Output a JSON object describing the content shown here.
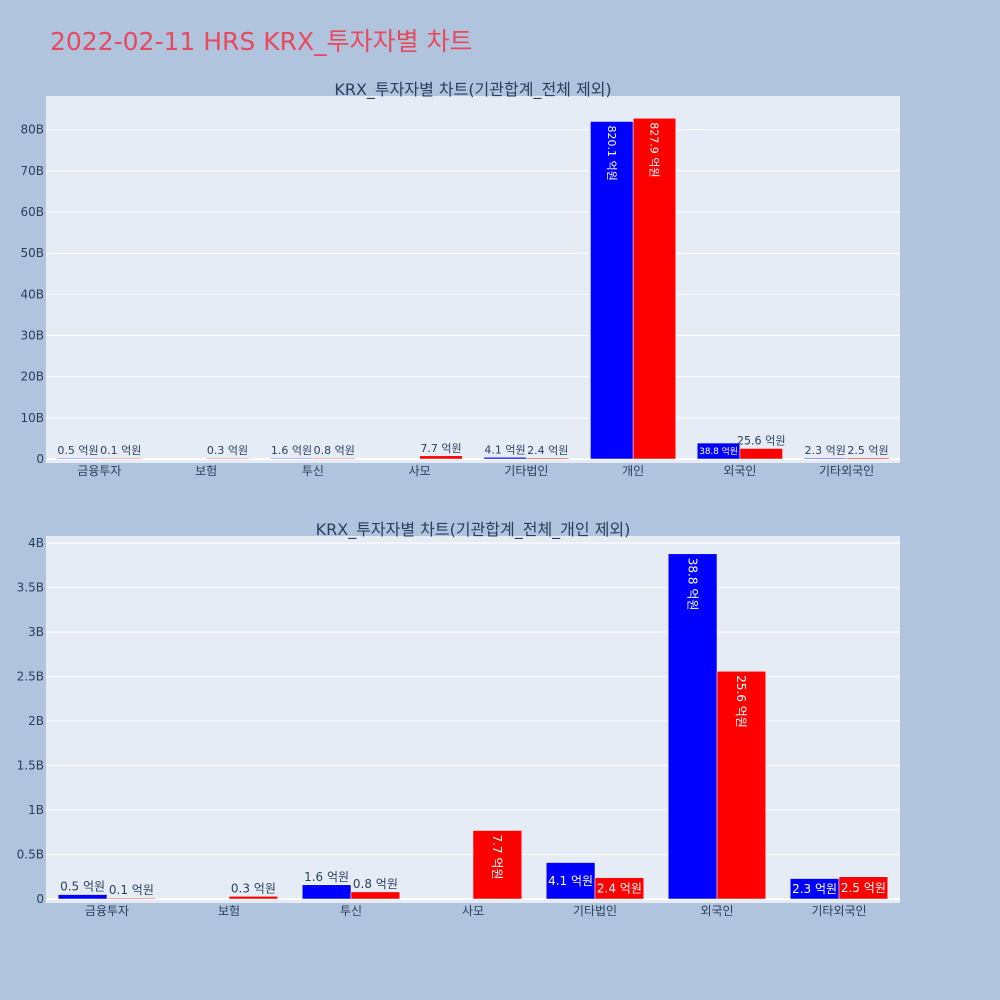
{
  "page": {
    "title": "2022-02-11 HRS KRX_투자자별 차트"
  },
  "colors": {
    "buy": "#0000ff",
    "sell": "#ff0000",
    "plot_bg": "#e5ecf6",
    "page_bg": "#b0c4de",
    "title": "#e8495f",
    "text": "#2a3f5f"
  },
  "chart_data": [
    {
      "type": "bar",
      "title": "KRX_투자자별 차트(기관합계_전체 제외)",
      "categories": [
        "금융투자",
        "보험",
        "투신",
        "사모",
        "기타법인",
        "개인",
        "외국인",
        "기타외국인"
      ],
      "series": [
        {
          "color": "#0000ff",
          "values": [
            0.05,
            null,
            0.16,
            null,
            0.41,
            82.01,
            3.88,
            0.23
          ],
          "labels": [
            "0.5 억원",
            "",
            "1.6 억원",
            "",
            "4.1 억원",
            "820.1 억원",
            "38.8 억원",
            "2.3 억원"
          ]
        },
        {
          "color": "#ff0000",
          "values": [
            0.01,
            0.03,
            0.08,
            0.77,
            0.24,
            82.79,
            2.56,
            0.25
          ],
          "labels": [
            "0.1 억원",
            "0.3 억원",
            "0.8 억원",
            "7.7 억원",
            "2.4 억원",
            "827.9 억원",
            "25.6 억원",
            "2.5 억원"
          ]
        }
      ],
      "yticks": [
        0,
        10,
        20,
        30,
        40,
        50,
        60,
        70,
        80
      ],
      "ytick_labels": [
        "0",
        "10B",
        "20B",
        "30B",
        "40B",
        "50B",
        "60B",
        "70B",
        "80B"
      ],
      "ylim": [
        0,
        88.2
      ],
      "grid": true,
      "legend": "none"
    },
    {
      "type": "bar",
      "title": "KRX_투자자별 차트(기관합계_전체_개인 제외)",
      "categories": [
        "금융투자",
        "보험",
        "투신",
        "사모",
        "기타법인",
        "외국인",
        "기타외국인"
      ],
      "series": [
        {
          "color": "#0000ff",
          "values": [
            0.05,
            null,
            0.16,
            null,
            0.41,
            3.88,
            0.23
          ],
          "labels": [
            "0.5 억원",
            "",
            "1.6 억원",
            "",
            "4.1 억원",
            "38.8 억원",
            "2.3 억원"
          ]
        },
        {
          "color": "#ff0000",
          "values": [
            0.01,
            0.03,
            0.08,
            0.77,
            0.24,
            2.56,
            0.25
          ],
          "labels": [
            "0.1 억원",
            "0.3 억원",
            "0.8 억원",
            "7.7 억원",
            "2.4 억원",
            "25.6 억원",
            "2.5 억원"
          ]
        }
      ],
      "yticks": [
        0,
        0.5,
        1,
        1.5,
        2,
        2.5,
        3,
        3.5,
        4
      ],
      "ytick_labels": [
        "0",
        "0.5B",
        "1B",
        "1.5B",
        "2B",
        "2.5B",
        "3B",
        "3.5B",
        "4B"
      ],
      "ylim": [
        0,
        4.08
      ],
      "grid": true,
      "legend": "none"
    }
  ]
}
